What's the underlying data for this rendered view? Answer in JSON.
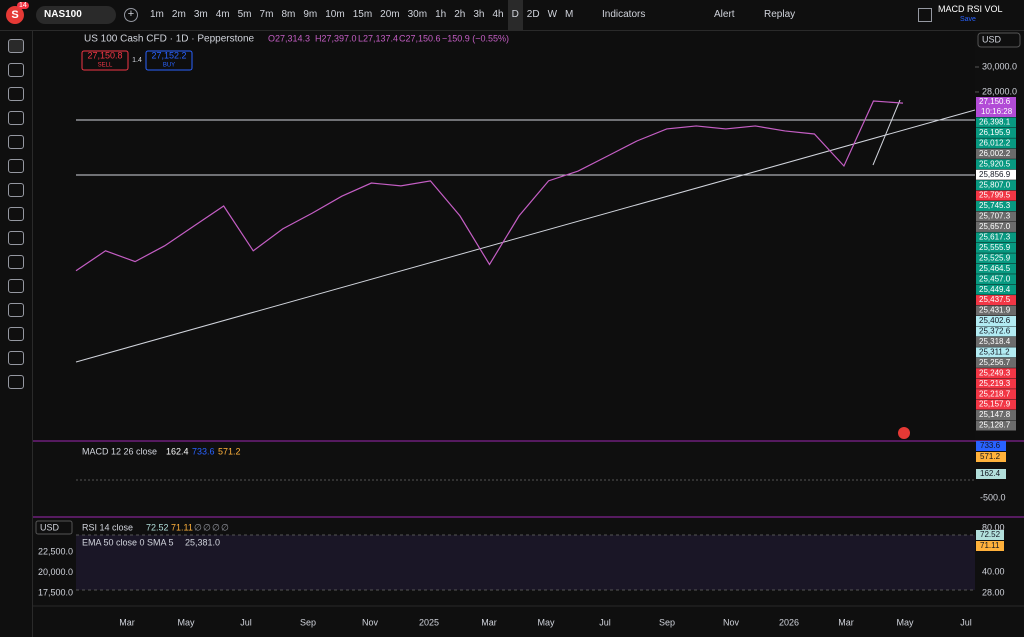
{
  "toolbar": {
    "symbol": "NAS100",
    "badge": "14",
    "timeframes": [
      "1m",
      "2m",
      "3m",
      "4m",
      "5m",
      "7m",
      "8m",
      "9m",
      "10m",
      "15m",
      "20m",
      "30m",
      "1h",
      "2h",
      "3h",
      "4h",
      "D",
      "2D",
      "W",
      "M"
    ],
    "indicators": "Indicators",
    "alert": "Alert",
    "replay": "Replay",
    "layout_name": "MACD RSI VOL",
    "save": "Save"
  },
  "legend": {
    "title": "US 100 Cash CFD · 1D · Pepperstone",
    "open": "O27,314.3",
    "high": "H27,397.0",
    "low": "L27,137.4",
    "close": "C27,150.6",
    "change": "−150.9 (−0.55%)",
    "sell_price": "27,150.8",
    "sell": "SELL",
    "spread": "1.4",
    "buy_price": "27,152.2",
    "buy": "BUY"
  },
  "main_pane": {
    "currency": "USD",
    "log_scale": true,
    "ylim": [
      10670,
      33140
    ],
    "yticks": [
      {
        "value": 28000,
        "label": "28,000.0"
      },
      {
        "value": 30000,
        "label": "30,000.0"
      }
    ],
    "color": "#c45ec4",
    "closes": [
      17080,
      18050,
      17520,
      18300,
      19340,
      20430,
      18050,
      19180,
      20030,
      20990,
      21770,
      21600,
      21900,
      19880,
      17380,
      19880,
      21900,
      22500,
      23460,
      24460,
      25280,
      25490,
      25280,
      25490,
      25140,
      24930,
      22820,
      27310,
      27150.6
    ],
    "countdown": "10:16:28",
    "price_badges": [
      {
        "label": "27,150.6",
        "color": "#b24bd6"
      },
      {
        "label": "26,398.1",
        "color": "#089981"
      },
      {
        "label": "26,195.9",
        "color": "#089981"
      },
      {
        "label": "26,012.2",
        "color": "#089981"
      },
      {
        "label": "26,002.2",
        "color": "#6b6b6b"
      },
      {
        "label": "25,920.5",
        "color": "#089981"
      },
      {
        "label": "25,856.9",
        "color": "#ffffff"
      },
      {
        "label": "25,807.0",
        "color": "#089981"
      },
      {
        "label": "25,799.5",
        "color": "#f23645"
      },
      {
        "label": "25,745.3",
        "color": "#089981"
      },
      {
        "label": "25,707.3",
        "color": "#6b6b6b"
      },
      {
        "label": "25,657.0",
        "color": "#6b6b6b"
      },
      {
        "label": "25,617.3",
        "color": "#089981"
      },
      {
        "label": "25,555.9",
        "color": "#089981"
      },
      {
        "label": "25,525.9",
        "color": "#089981"
      },
      {
        "label": "25,464.5",
        "color": "#089981"
      },
      {
        "label": "25,457.0",
        "color": "#089981"
      },
      {
        "label": "25,449.4",
        "color": "#089981"
      },
      {
        "label": "25,437.5",
        "color": "#f23645"
      },
      {
        "label": "25,431.9",
        "color": "#6b6b6b"
      },
      {
        "label": "25,402.6",
        "color": "#b2ebf2"
      },
      {
        "label": "25,372.6",
        "color": "#b2ebf2"
      },
      {
        "label": "25,318.4",
        "color": "#6b6b6b"
      },
      {
        "label": "25,311.2",
        "color": "#b2ebf2"
      },
      {
        "label": "25,256.7",
        "color": "#6b6b6b"
      },
      {
        "label": "25,249.3",
        "color": "#f23645"
      },
      {
        "label": "25,219.3",
        "color": "#f23645"
      },
      {
        "label": "25,218.7",
        "color": "#f23645"
      },
      {
        "label": "25,157.9",
        "color": "#f23645"
      },
      {
        "label": "25,147.8",
        "color": "#6b6b6b"
      },
      {
        "label": "25,128.7",
        "color": "#6b6b6b"
      }
    ]
  },
  "macd_pane": {
    "label": "MACD 12 26 close",
    "readings": [
      "162.4",
      "733.6",
      "571.2"
    ],
    "scale": [
      {
        "label": "733.6",
        "color": "#2962ff"
      },
      {
        "label": "571.2",
        "color": "#ffb13b"
      },
      {
        "label": "162.4",
        "color": "#b2dfdb"
      }
    ],
    "tick": "-500.0"
  },
  "rsi_pane": {
    "currency": "USD",
    "label": "RSI 14 close",
    "readings": [
      "72.52",
      "71.11",
      "∅",
      "∅",
      "∅",
      "∅"
    ],
    "ma_label": "EMA 50 close 0 SMA 5",
    "ma_reading": "25,381.0",
    "left_ticks": [
      "22,500.0",
      "20,000.0",
      "17,500.0"
    ],
    "right_ticks": [
      "80.00",
      "40.00",
      "28.00"
    ],
    "badges": [
      {
        "label": "72.52",
        "color": "#b2dfdb"
      },
      {
        "label": "71.11",
        "color": "#ffb13b"
      }
    ]
  },
  "x_axis": [
    "Mar",
    "May",
    "Jul",
    "Sep",
    "Nov",
    "2025",
    "Mar",
    "May",
    "Jul",
    "Sep",
    "Nov",
    "2026",
    "Mar",
    "May",
    "Jul"
  ]
}
